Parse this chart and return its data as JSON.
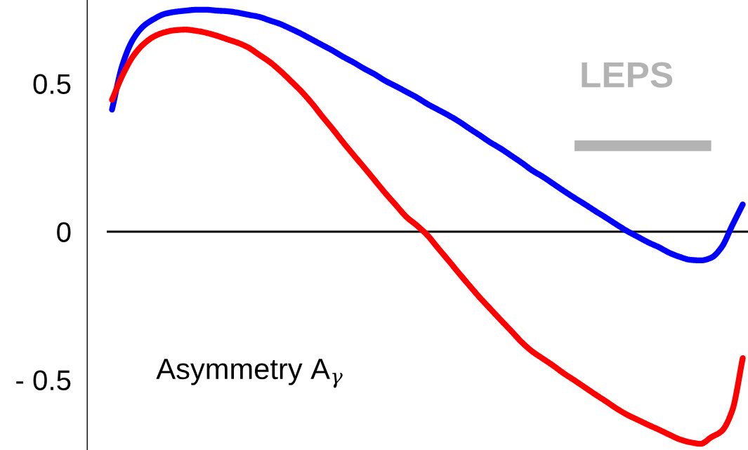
{
  "chart_data": {
    "type": "line",
    "categories": [
      null,
      null,
      null,
      null,
      null,
      null,
      null,
      null,
      null,
      null,
      null,
      null,
      null,
      null,
      null,
      null,
      null,
      null,
      null,
      null,
      null,
      null,
      null,
      null,
      null,
      null,
      null,
      null,
      null,
      null,
      null,
      null,
      null,
      null,
      null,
      null,
      null,
      null,
      null,
      null,
      null,
      null,
      null,
      null,
      null,
      null,
      null,
      null,
      null,
      null,
      null,
      null,
      null,
      null,
      null,
      null,
      null,
      null,
      null,
      null,
      null
    ],
    "series": [
      {
        "color": "#0000ff",
        "values": [
          0.412,
          0.564,
          0.649,
          0.694,
          0.718,
          0.735,
          0.742,
          0.746,
          0.749,
          0.749,
          0.746,
          0.744,
          0.739,
          0.732,
          0.725,
          0.713,
          0.701,
          0.685,
          0.668,
          0.649,
          0.63,
          0.611,
          0.59,
          0.571,
          0.55,
          0.531,
          0.509,
          0.491,
          0.472,
          0.453,
          0.431,
          0.412,
          0.393,
          0.372,
          0.348,
          0.325,
          0.301,
          0.28,
          0.256,
          0.232,
          0.206,
          0.185,
          0.161,
          0.137,
          0.114,
          0.092,
          0.069,
          0.047,
          0.024,
          0.002,
          -0.017,
          -0.036,
          -0.052,
          -0.071,
          -0.085,
          -0.095,
          -0.097,
          -0.088,
          -0.052,
          0.021,
          0.092
        ]
      },
      {
        "color": "#ff0000",
        "values": [
          0.445,
          0.528,
          0.592,
          0.633,
          0.659,
          0.673,
          0.68,
          0.682,
          0.678,
          0.671,
          0.661,
          0.649,
          0.637,
          0.621,
          0.597,
          0.573,
          0.543,
          0.509,
          0.474,
          0.434,
          0.389,
          0.346,
          0.301,
          0.258,
          0.216,
          0.173,
          0.13,
          0.09,
          0.05,
          0.021,
          -0.012,
          -0.055,
          -0.097,
          -0.14,
          -0.182,
          -0.223,
          -0.261,
          -0.299,
          -0.336,
          -0.374,
          -0.405,
          -0.429,
          -0.453,
          -0.479,
          -0.502,
          -0.526,
          -0.55,
          -0.573,
          -0.597,
          -0.618,
          -0.635,
          -0.652,
          -0.668,
          -0.685,
          -0.701,
          -0.711,
          -0.716,
          -0.694,
          -0.673,
          -0.604,
          -0.427
        ]
      },
      {
        "name": "LEPS",
        "color": "#b3b3b3",
        "values": [
          null,
          null,
          null,
          null,
          null,
          null,
          null,
          null,
          null,
          null,
          null,
          null,
          null,
          null,
          null,
          null,
          null,
          null,
          null,
          null,
          null,
          null,
          null,
          null,
          null,
          null,
          null,
          null,
          null,
          null,
          null,
          null,
          null,
          null,
          null,
          null,
          null,
          null,
          null,
          null,
          null,
          null,
          null,
          null,
          0.29,
          0.29,
          0.29,
          0.29,
          0.29,
          0.29,
          0.29,
          0.29,
          0.29,
          0.29,
          0.29,
          0.29,
          0.29,
          0.29,
          null,
          null,
          null
        ]
      }
    ],
    "ylim": [
      -0.737,
      0.782
    ],
    "yticks": [
      0.5,
      0,
      {
        "value": -0.5,
        "label": "- 0.5"
      }
    ],
    "tick_labels": "y",
    "ref_lines": [
      {
        "axis": "y",
        "value": 0,
        "color": "#000000"
      }
    ],
    "annotations": [
      "Asymmetry A$_{γ}$"
    ],
    "grid": false,
    "legend": false,
    "marker": "none",
    "line_style": "solid"
  }
}
